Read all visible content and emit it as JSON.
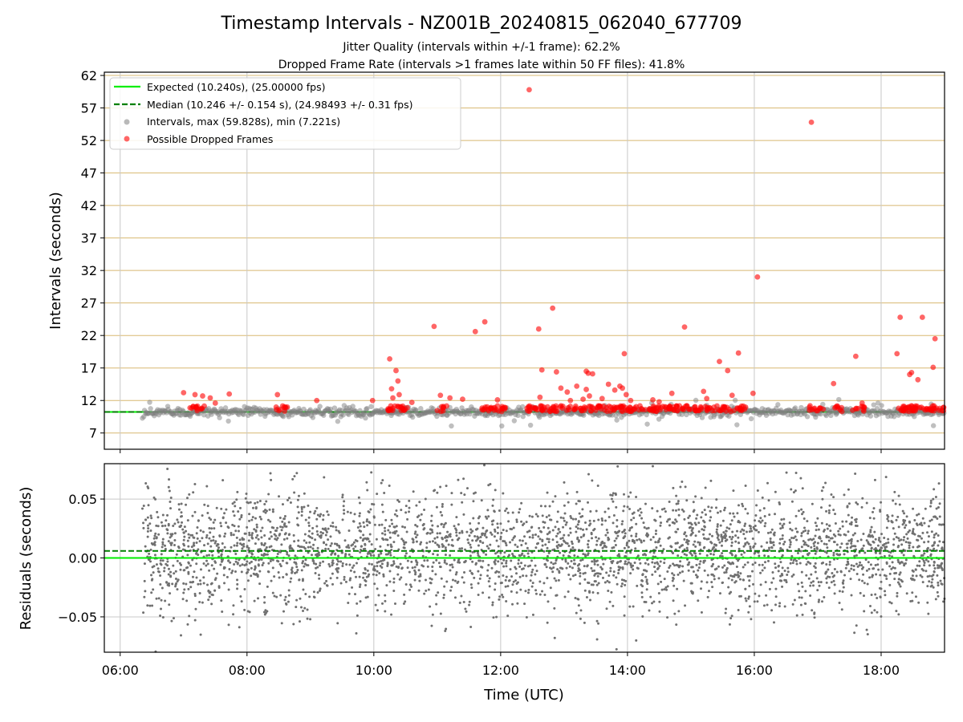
{
  "chart_data": [
    {
      "type": "scatter",
      "title": "Timestamp Intervals - NZ001B_20240815_062040_677709",
      "subtitle_lines": [
        "Jitter Quality (intervals within +/-1 frame): 62.2%",
        "Dropped Frame Rate (intervals >1 frames late within 50 FF files): 41.8%"
      ],
      "xlabel": "",
      "ylabel": "Intervals (seconds)",
      "xlim_hours": [
        5.75,
        19.0
      ],
      "ylim": [
        4.5,
        62.5
      ],
      "yticks": [
        7,
        12,
        17,
        22,
        27,
        32,
        37,
        42,
        47,
        52,
        57,
        62
      ],
      "xticks_hours": [
        6,
        8,
        10,
        12,
        14,
        16,
        18
      ],
      "xtick_labels": [
        "06:00",
        "08:00",
        "10:00",
        "12:00",
        "14:00",
        "16:00",
        "18:00"
      ],
      "grid": "on",
      "legend_placement": "top-left",
      "expected_interval": 10.24,
      "median_interval": 10.246,
      "data_start_hour": 6.35,
      "legend": [
        "Expected (10.240s), (25.00000 fps)",
        "Median (10.246 +/- 0.154 s), (24.98493 +/- 0.31 fps)",
        "Intervals, max (59.828s), min (7.221s)",
        "Possible Dropped Frames"
      ],
      "colors": {
        "expected": "#00ee00",
        "median": "#008000",
        "intervals": "#808080",
        "dropped": "#ff0000",
        "ygrid": "#d8b871",
        "xgrid": "#c8c8c8"
      },
      "dropped_frames": [
        {
          "x": 7.0,
          "y": 13.2
        },
        {
          "x": 7.18,
          "y": 12.9
        },
        {
          "x": 7.3,
          "y": 12.7
        },
        {
          "x": 7.42,
          "y": 12.4
        },
        {
          "x": 7.5,
          "y": 11.6
        },
        {
          "x": 7.72,
          "y": 13.0
        },
        {
          "x": 8.48,
          "y": 12.9
        },
        {
          "x": 9.1,
          "y": 12.0
        },
        {
          "x": 9.98,
          "y": 12.0
        },
        {
          "x": 10.25,
          "y": 18.4
        },
        {
          "x": 10.28,
          "y": 13.8
        },
        {
          "x": 10.3,
          "y": 12.4
        },
        {
          "x": 10.35,
          "y": 16.6
        },
        {
          "x": 10.38,
          "y": 15.0
        },
        {
          "x": 10.4,
          "y": 12.9
        },
        {
          "x": 10.6,
          "y": 11.7
        },
        {
          "x": 10.95,
          "y": 23.4
        },
        {
          "x": 11.05,
          "y": 12.8
        },
        {
          "x": 11.2,
          "y": 12.4
        },
        {
          "x": 11.4,
          "y": 12.2
        },
        {
          "x": 11.6,
          "y": 22.6
        },
        {
          "x": 11.75,
          "y": 24.1
        },
        {
          "x": 11.95,
          "y": 12.1
        },
        {
          "x": 12.45,
          "y": 59.8
        },
        {
          "x": 12.6,
          "y": 23.0
        },
        {
          "x": 12.65,
          "y": 16.7
        },
        {
          "x": 12.62,
          "y": 12.5
        },
        {
          "x": 12.82,
          "y": 26.2
        },
        {
          "x": 12.88,
          "y": 16.4
        },
        {
          "x": 12.95,
          "y": 13.9
        },
        {
          "x": 13.05,
          "y": 13.3
        },
        {
          "x": 13.1,
          "y": 12.0
        },
        {
          "x": 13.2,
          "y": 14.2
        },
        {
          "x": 13.3,
          "y": 12.2
        },
        {
          "x": 13.35,
          "y": 16.5
        },
        {
          "x": 13.38,
          "y": 16.2
        },
        {
          "x": 13.45,
          "y": 16.1
        },
        {
          "x": 13.35,
          "y": 13.7
        },
        {
          "x": 13.4,
          "y": 12.7
        },
        {
          "x": 13.6,
          "y": 12.3
        },
        {
          "x": 13.7,
          "y": 14.5
        },
        {
          "x": 13.8,
          "y": 13.6
        },
        {
          "x": 13.88,
          "y": 14.2
        },
        {
          "x": 13.92,
          "y": 13.9
        },
        {
          "x": 13.95,
          "y": 19.2
        },
        {
          "x": 13.98,
          "y": 12.9
        },
        {
          "x": 14.05,
          "y": 12.0
        },
        {
          "x": 14.4,
          "y": 12.1
        },
        {
          "x": 14.5,
          "y": 11.8
        },
        {
          "x": 14.7,
          "y": 13.1
        },
        {
          "x": 14.9,
          "y": 23.3
        },
        {
          "x": 15.2,
          "y": 13.4
        },
        {
          "x": 15.25,
          "y": 12.3
        },
        {
          "x": 15.45,
          "y": 18.0
        },
        {
          "x": 15.58,
          "y": 16.6
        },
        {
          "x": 15.65,
          "y": 12.8
        },
        {
          "x": 15.75,
          "y": 19.3
        },
        {
          "x": 15.98,
          "y": 13.1
        },
        {
          "x": 16.05,
          "y": 31.0
        },
        {
          "x": 16.9,
          "y": 54.8
        },
        {
          "x": 17.25,
          "y": 14.6
        },
        {
          "x": 17.6,
          "y": 18.8
        },
        {
          "x": 17.7,
          "y": 11.6
        },
        {
          "x": 18.25,
          "y": 19.2
        },
        {
          "x": 18.3,
          "y": 24.8
        },
        {
          "x": 18.45,
          "y": 16.0
        },
        {
          "x": 18.48,
          "y": 16.3
        },
        {
          "x": 18.58,
          "y": 15.2
        },
        {
          "x": 18.65,
          "y": 24.8
        },
        {
          "x": 18.82,
          "y": 17.1
        },
        {
          "x": 18.85,
          "y": 21.5
        }
      ]
    },
    {
      "type": "scatter",
      "title": "",
      "xlabel": "Time (UTC)",
      "ylabel": "Residuals (seconds)",
      "xlim_hours": [
        5.75,
        19.0
      ],
      "ylim": [
        -0.08,
        0.08
      ],
      "yticks": [
        -0.05,
        0.0,
        0.05
      ],
      "ytick_labels": [
        "−0.05",
        "0.00",
        "0.05"
      ],
      "xticks_hours": [
        6,
        8,
        10,
        12,
        14,
        16,
        18
      ],
      "xtick_labels": [
        "06:00",
        "08:00",
        "10:00",
        "12:00",
        "14:00",
        "16:00",
        "18:00"
      ],
      "grid": "on",
      "expected_residual": 0.0,
      "median_residual": 0.006,
      "residual_std": 0.025,
      "data_start_hour": 6.35,
      "colors": {
        "expected": "#00ee00",
        "median": "#008000",
        "points": "#707070",
        "grid": "#c8c8c8"
      }
    }
  ]
}
